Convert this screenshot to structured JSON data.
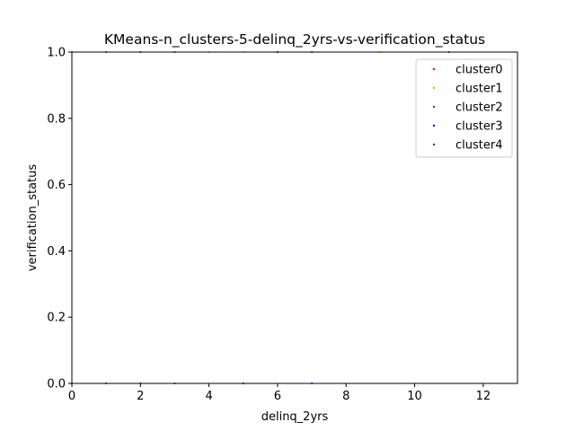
{
  "chart_data": {
    "type": "scatter",
    "title": "KMeans-n_clusters-5-delinq_2yrs-vs-verification_status",
    "xlabel": "delinq_2yrs",
    "ylabel": "verification_status",
    "xlim": [
      0,
      13
    ],
    "ylim": [
      0,
      1
    ],
    "xticks": [
      "0",
      "2",
      "4",
      "6",
      "8",
      "10",
      "12"
    ],
    "yticks": [
      "0.0",
      "0.2",
      "0.4",
      "0.6",
      "0.8",
      "1.0"
    ],
    "grid": false,
    "legend_position": "top-right",
    "series": [
      {
        "name": "cluster0",
        "color": "#ff0000",
        "points": [
          [
            0,
            0
          ],
          [
            0,
            1
          ]
        ]
      },
      {
        "name": "cluster1",
        "color": "#ffa500",
        "points": [
          [
            4,
            1
          ],
          [
            5,
            1
          ],
          [
            9,
            1
          ]
        ]
      },
      {
        "name": "cluster2",
        "color": "#008000",
        "points": [
          [
            6,
            1
          ]
        ]
      },
      {
        "name": "cluster3",
        "color": "#0000ff",
        "points": [
          [
            1,
            0
          ],
          [
            2,
            0
          ],
          [
            3,
            0
          ],
          [
            5,
            0
          ],
          [
            7,
            0
          ]
        ]
      },
      {
        "name": "cluster4",
        "color": "#800080",
        "points": [
          [
            1,
            1
          ],
          [
            2,
            1
          ],
          [
            3,
            1
          ],
          [
            6,
            1
          ],
          [
            7,
            1
          ],
          [
            11,
            1
          ]
        ]
      }
    ]
  }
}
